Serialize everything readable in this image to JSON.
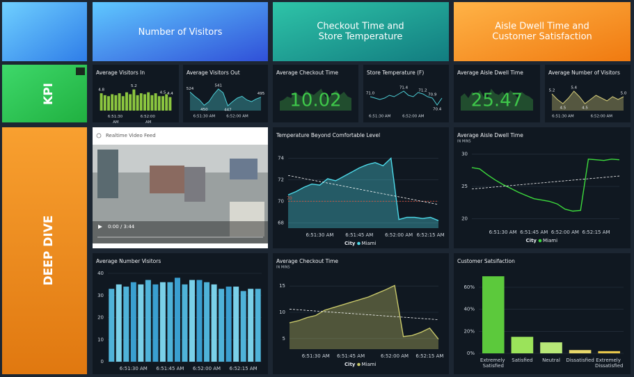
{
  "headers": {
    "visitors": [
      "Number of Visitors"
    ],
    "checkout": [
      "Checkout Time and",
      "Store Temperature"
    ],
    "aisle": [
      "Aisle Dwell Time and",
      "Customer Satisfaction"
    ],
    "kpi": "KPI",
    "deep_dive": "DEEP DIVE"
  },
  "video": {
    "title": "Realtime Video Feed",
    "time": "0:00 / 3:44"
  },
  "chart_data": [
    {
      "type": "bar",
      "title": "Average Visitors In",
      "ylim": [
        3,
        5.6
      ],
      "categories": [
        null,
        null,
        null,
        null,
        "6:51:30 AM",
        null,
        null,
        null,
        null,
        null,
        null,
        null,
        null,
        "6:52:00 AM",
        null,
        null,
        null,
        null,
        null,
        null
      ],
      "series": [
        {
          "name": "Average Visitors In",
          "color": "#8cc63f",
          "values": [
            4.8,
            4.6,
            4.5,
            4.7,
            4.6,
            4.8,
            4.5,
            4.9,
            4.7,
            5.2,
            4.6,
            4.8,
            4.7,
            4.9,
            4.6,
            4.8,
            4.5,
            4.5,
            4.7,
            4.4
          ],
          "value_labels": [
            "4.8",
            null,
            null,
            null,
            null,
            null,
            null,
            null,
            null,
            "5.2",
            null,
            null,
            null,
            null,
            null,
            null,
            null,
            "4.5",
            null,
            "4.4"
          ]
        }
      ]
    },
    {
      "type": "area",
      "title": "Average Visitors Out",
      "ylim": [
        420,
        560
      ],
      "categories": [
        null,
        null,
        null,
        "6:51:30 AM",
        null,
        null,
        null,
        null,
        null,
        null,
        "6:52:00 AM",
        null,
        null,
        null,
        null,
        null
      ],
      "series": [
        {
          "name": "Average Visitors Out",
          "color": "#4dd0d8",
          "values": [
            524,
            500,
            480,
            450,
            470,
            510,
            541,
            520,
            447,
            470,
            490,
            500,
            480,
            470,
            485,
            495
          ],
          "value_labels": [
            "524",
            null,
            null,
            "450",
            null,
            null,
            "541",
            null,
            "447",
            null,
            null,
            null,
            null,
            null,
            null,
            "495"
          ]
        }
      ]
    },
    {
      "type": "area",
      "title": "Average Checkout Time",
      "kpi": "10.02",
      "ylim": [
        0,
        16
      ],
      "series": [
        {
          "name": "Average Checkout Time",
          "color": "#2f7a3a",
          "values": [
            6,
            7,
            9,
            8,
            12,
            10,
            9,
            13,
            11,
            10,
            12,
            14,
            9,
            8,
            11,
            13,
            10,
            12,
            9,
            8
          ]
        }
      ]
    },
    {
      "type": "line",
      "title": "Store Temperature (F)",
      "ylim": [
        70,
        71.8
      ],
      "categories": [
        null,
        null,
        "6:51:30 AM",
        null,
        null,
        null,
        null,
        null,
        null,
        "6:52:00 AM",
        null,
        null,
        null,
        null,
        null,
        null
      ],
      "series": [
        {
          "name": "Store Temperature (F)",
          "color": "#4dd0d8",
          "values": [
            71.0,
            70.9,
            70.8,
            70.9,
            71.1,
            71.0,
            71.2,
            71.4,
            71.1,
            71.0,
            71.3,
            71.2,
            71.0,
            70.9,
            70.4,
            70.9
          ],
          "value_labels": [
            "71.0",
            null,
            null,
            null,
            null,
            null,
            null,
            "71.4",
            null,
            null,
            null,
            "71.2",
            null,
            "70.9",
            "70.4",
            null
          ]
        }
      ]
    },
    {
      "type": "area",
      "title": "Average Aisle Dwell Time",
      "kpi": "25.47",
      "ylim": [
        0,
        16
      ],
      "series": [
        {
          "name": "Average Aisle Dwell Time",
          "color": "#2f7a3a",
          "values": [
            9,
            11,
            8,
            12,
            10,
            13,
            9,
            8,
            14,
            11,
            10,
            12,
            9,
            13,
            11,
            8,
            12,
            10,
            9,
            7
          ]
        }
      ]
    },
    {
      "type": "area",
      "title": "Average Number of Visitors",
      "ylim": [
        4,
        5.8
      ],
      "categories": [
        null,
        null,
        "6:51:30 AM",
        null,
        null,
        null,
        null,
        null,
        null,
        "6:52:00 AM",
        null,
        null,
        null,
        null
      ],
      "series": [
        {
          "name": "Average Number of Visitors",
          "color": "#d8cf7a",
          "values": [
            5.2,
            4.8,
            4.5,
            4.9,
            5.4,
            5.0,
            4.5,
            4.8,
            5.1,
            4.9,
            4.7,
            5.0,
            4.8,
            5.0
          ],
          "value_labels": [
            "5.2",
            null,
            "4.5",
            null,
            "5.4",
            null,
            "4.5",
            null,
            null,
            null,
            null,
            null,
            null,
            "5.0"
          ]
        }
      ]
    },
    {
      "type": "area",
      "title": "Temperature Beyond Comfortable Level",
      "ylim": [
        67.5,
        75
      ],
      "yticks": [
        68,
        70,
        72,
        74
      ],
      "categories": [
        null,
        null,
        null,
        null,
        "6:51:30 AM",
        null,
        null,
        null,
        null,
        "6:51:45 AM",
        null,
        null,
        null,
        null,
        "6:52:00 AM",
        null,
        null,
        null,
        "6:52:15 AM",
        null
      ],
      "series": [
        {
          "name": "Miami",
          "color": "#4dd9e8",
          "values": [
            70.6,
            70.9,
            71.3,
            71.6,
            71.5,
            72.1,
            71.9,
            72.3,
            72.7,
            73.1,
            73.4,
            73.6,
            73.3,
            74.0,
            68.3,
            68.5,
            68.5,
            68.4,
            68.5,
            68.2
          ]
        }
      ],
      "trend": [
        72.4,
        69.7
      ],
      "reference_line": 70,
      "legend_title": "City"
    },
    {
      "type": "line",
      "title": "Average Aisle Dwell Time",
      "subtitle": "IN MINS",
      "ylim": [
        19,
        31
      ],
      "yticks": [
        20,
        25,
        30
      ],
      "categories": [
        null,
        null,
        null,
        null,
        "6:51:30 AM",
        null,
        null,
        null,
        "6:51:45 AM",
        null,
        null,
        null,
        "6:52:00 AM",
        null,
        null,
        null,
        "6:52:15 AM",
        null,
        null,
        null
      ],
      "series": [
        {
          "name": "Miami",
          "color": "#3ddc3d",
          "values": [
            27.9,
            27.7,
            26.8,
            26.0,
            25.3,
            24.7,
            24.1,
            23.6,
            23.1,
            22.9,
            22.7,
            22.3,
            21.5,
            21.2,
            21.3,
            29.2,
            29.1,
            29.0,
            29.2,
            29.1
          ]
        }
      ],
      "trend": [
        24.6,
        26.6
      ],
      "legend_title": "City"
    },
    {
      "type": "bar",
      "title": "Average Number Visitors",
      "ylim": [
        0,
        40
      ],
      "yticks": [
        0,
        10,
        20,
        30,
        40
      ],
      "categories": [
        null,
        null,
        null,
        "6:51:30 AM",
        null,
        null,
        null,
        null,
        "6:51:45 AM",
        null,
        null,
        null,
        null,
        "6:52:00 AM",
        null,
        null,
        null,
        null,
        "6:52:15 AM",
        null,
        null
      ],
      "series": [
        {
          "name": "Average Number Visitors",
          "color": "#4fb3d9",
          "colors": [
            "#4fb3d9",
            "#7ad0e8",
            "#4fb3d9",
            "#3a9fd0",
            "#7ad0e8",
            "#4fb3d9",
            "#3a9fd0",
            "#7ad0e8",
            "#4fb3d9",
            "#3a9fd0",
            "#4fb3d9",
            "#7ad0e8",
            "#3a9fd0",
            "#4fb3d9",
            "#7ad0e8",
            "#4fb3d9",
            "#3a9fd0",
            "#7ad0e8",
            "#4fb3d9",
            "#7ad0e8",
            "#4fb3d9"
          ],
          "values": [
            33,
            35,
            34,
            36,
            35,
            37,
            35,
            36,
            36,
            38,
            35,
            37,
            37,
            36,
            35,
            33,
            34,
            34,
            32,
            33,
            33
          ]
        }
      ]
    },
    {
      "type": "area",
      "title": "Average Checkout Time",
      "subtitle": "IN MINS",
      "ylim": [
        3,
        17
      ],
      "yticks": [
        5,
        10,
        15
      ],
      "categories": [
        null,
        null,
        null,
        "6:51:30 AM",
        null,
        null,
        null,
        "6:51:45 AM",
        null,
        null,
        null,
        null,
        "6:52:00 AM",
        null,
        null,
        null,
        "6:52:15 AM",
        null
      ],
      "series": [
        {
          "name": "Miami",
          "color": "#c8c86a",
          "values": [
            8.0,
            8.4,
            9.0,
            9.4,
            10.4,
            10.9,
            11.4,
            11.9,
            12.4,
            12.9,
            13.6,
            14.3,
            15.1,
            5.4,
            5.6,
            6.2,
            7.0,
            4.9
          ]
        }
      ],
      "trend": [
        10.6,
        8.6
      ],
      "legend_title": "City"
    },
    {
      "type": "bar",
      "title": "Customer Satsifaction",
      "ylim": [
        0,
        72
      ],
      "yticks": [
        {
          "value": 0,
          "label": "0%"
        },
        {
          "value": 20,
          "label": "20%"
        },
        {
          "value": 40,
          "label": "40%"
        },
        {
          "value": 60,
          "label": "60%"
        }
      ],
      "categories": [
        "Extremely Satisfied",
        "Satisfied",
        "Neutral",
        "Dissatisfied",
        "Extremely Dissatisfied"
      ],
      "series": [
        {
          "name": "Customer Satsifaction",
          "color": "#5cc93c",
          "colors": [
            "#5cc93c",
            "#9be35a",
            "#b8e878",
            "#e8d86a",
            "#e8c64a"
          ],
          "values": [
            70,
            15,
            10,
            3,
            2
          ]
        }
      ]
    }
  ]
}
